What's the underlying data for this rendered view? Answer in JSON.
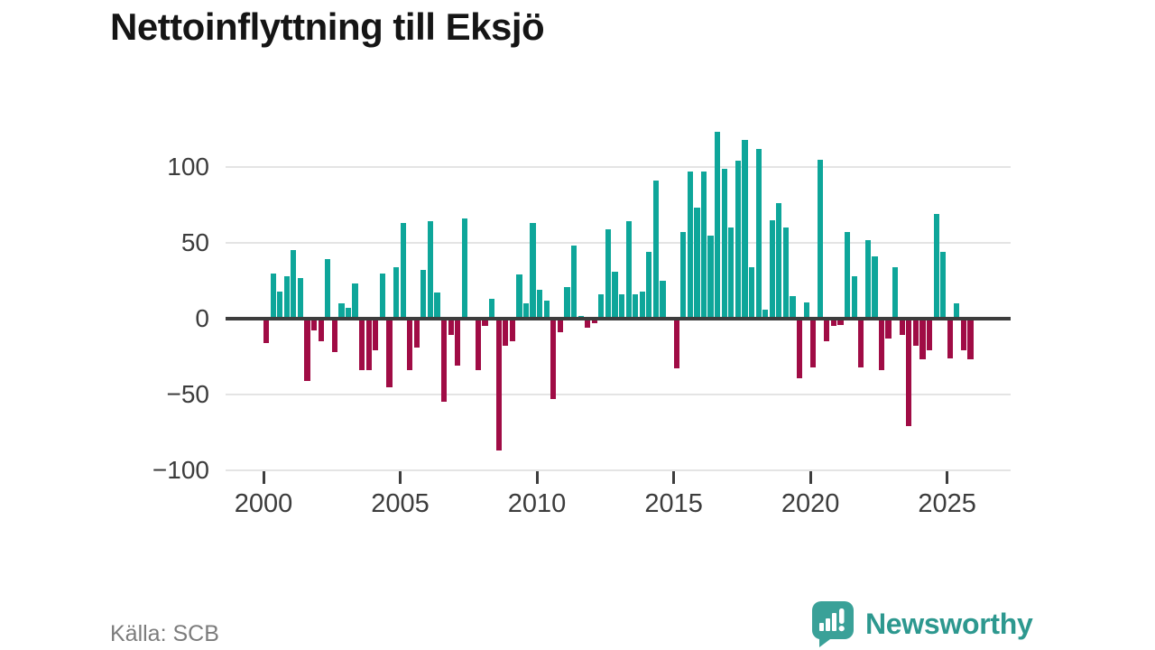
{
  "title": "Nettoinflyttning till Eksjö",
  "footer": {
    "source": "Källa: SCB",
    "brand": "Newsworthy"
  },
  "colors": {
    "positive_bar": "#0ea69a",
    "negative_bar": "#a00c45",
    "zero_line": "#3d3d3d",
    "gridline": "#e4e4e4",
    "axis_text": "#3c3c3c",
    "source_text": "#7c7c7c",
    "brand_teal": "#2d988f"
  },
  "chart_data": {
    "type": "bar",
    "title": "Nettoinflyttning till Eksjö",
    "xlabel": "",
    "ylabel": "",
    "frequency": "quarterly",
    "start_year": 2000,
    "points_per_year": 4,
    "x_tick_years": [
      2000,
      2005,
      2010,
      2015,
      2020,
      2025
    ],
    "y_ticks": [
      100,
      50,
      0,
      -50,
      -100
    ],
    "ylim": [
      -100,
      130
    ],
    "grid": true,
    "legend": "none",
    "values": [
      -16,
      30,
      18,
      28,
      45,
      27,
      -41,
      -8,
      -15,
      39,
      -22,
      10,
      7,
      23,
      -34,
      -34,
      -21,
      30,
      -45,
      34,
      63,
      -34,
      -19,
      32,
      64,
      17,
      -55,
      -11,
      -31,
      66,
      0,
      -34,
      -5,
      13,
      -87,
      -18,
      -15,
      29,
      10,
      63,
      19,
      12,
      -53,
      -9,
      21,
      48,
      2,
      -6,
      -3,
      16,
      59,
      31,
      16,
      64,
      16,
      18,
      44,
      91,
      25,
      0,
      -33,
      57,
      97,
      73,
      97,
      55,
      123,
      99,
      60,
      104,
      118,
      34,
      112,
      6,
      65,
      76,
      60,
      15,
      -39,
      11,
      -32,
      105,
      -15,
      -5,
      -4,
      57,
      28,
      -32,
      52,
      41,
      -34,
      -13,
      34,
      -11,
      -71,
      -18,
      -27,
      -21,
      69,
      44,
      -26,
      10,
      -21,
      -27
    ]
  }
}
